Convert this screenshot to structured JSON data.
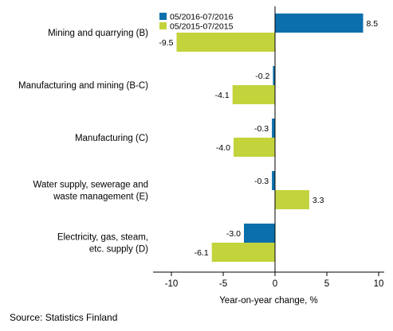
{
  "chart_data": {
    "type": "bar",
    "orientation": "horizontal",
    "categories": [
      [
        "Mining and quarrying (B)"
      ],
      [
        "Manufacturing and mining (B-C)"
      ],
      [
        "Manufacturing (C)"
      ],
      [
        "Water supply, sewerage and",
        "waste management (E)"
      ],
      [
        "Electricity, gas, steam,",
        "etc. supply (D)"
      ]
    ],
    "series": [
      {
        "name": "05/2016-07/2016",
        "color": "#0b6fac",
        "values": [
          8.5,
          -0.2,
          -0.3,
          -0.3,
          -3.0
        ]
      },
      {
        "name": "05/2015-07/2015",
        "color": "#c3d33c",
        "values": [
          -9.5,
          -4.1,
          -4.0,
          3.3,
          -6.1
        ]
      }
    ],
    "value_labels": [
      [
        "8.5",
        "-0.2",
        "-0.3",
        "-0.3",
        "-3.0"
      ],
      [
        "-9.5",
        "-4.1",
        "-4.0",
        "3.3",
        "-6.1"
      ]
    ],
    "xlabel": "Year-on-year change, %",
    "xlim": [
      -12,
      10
    ],
    "xticks": [
      -10,
      -5,
      0,
      5,
      10
    ],
    "xtick_labels": [
      "-10",
      "-5",
      "0",
      "5",
      "10"
    ],
    "grid": false,
    "legend_position": "top-center"
  },
  "source": "Source: Statistics Finland"
}
